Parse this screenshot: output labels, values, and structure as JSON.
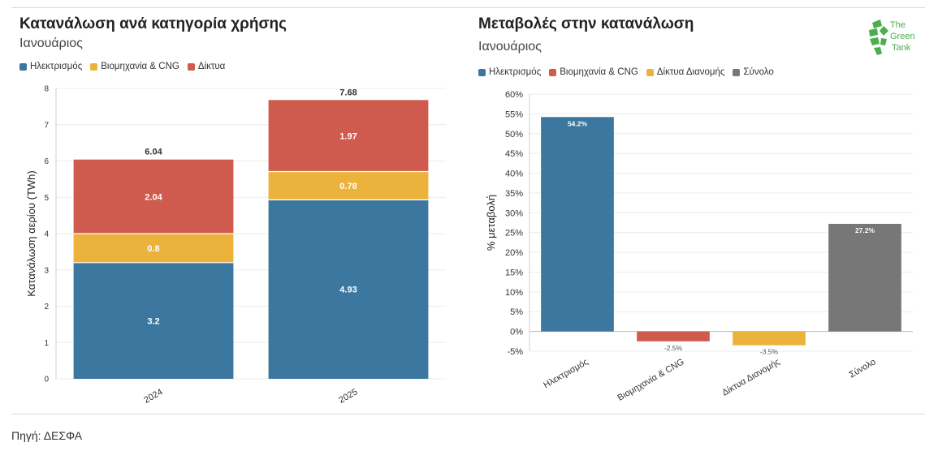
{
  "source": "Πηγή: ΔΕΣΦΑ",
  "logo": {
    "text_line1": "The",
    "text_line2": "Green",
    "text_line3": "Tank",
    "color": "#4cae4c"
  },
  "left": {
    "title": "Κατανάλωση ανά κατηγορία χρήσης",
    "subtitle": "Ιανουάριος",
    "legend": [
      {
        "label": "Ηλεκτρισμός",
        "color": "#3b779e"
      },
      {
        "label": "Βιομηχανία & CNG",
        "color": "#ebb33b"
      },
      {
        "label": "Δίκτυα",
        "color": "#cf5b4e"
      }
    ]
  },
  "right": {
    "title": "Μεταβολές στην κατανάλωση",
    "subtitle": "Ιανουάριος",
    "legend": [
      {
        "label": "Ηλεκτρισμός",
        "color": "#3b779e"
      },
      {
        "label": "Βιομηχανία & CNG",
        "color": "#cf5b4e"
      },
      {
        "label": "Δίκτυα Διανομής",
        "color": "#ebb33b"
      },
      {
        "label": "Σύνολο",
        "color": "#777777"
      }
    ]
  },
  "chart_data": [
    {
      "type": "bar",
      "stacked": true,
      "title": "Κατανάλωση ανά κατηγορία χρήσης",
      "subtitle": "Ιανουάριος",
      "categories": [
        "2024",
        "2025"
      ],
      "series": [
        {
          "name": "Ηλεκτρισμός",
          "values": [
            3.2,
            4.93
          ],
          "labels": [
            "3.2",
            "4.93"
          ],
          "color": "#3b779e"
        },
        {
          "name": "Βιομηχανία & CNG",
          "values": [
            0.8,
            0.78
          ],
          "labels": [
            "0.8",
            "0.78"
          ],
          "color": "#ebb33b"
        },
        {
          "name": "Δίκτυα",
          "values": [
            2.04,
            1.97
          ],
          "labels": [
            "2.04",
            "1.97"
          ],
          "color": "#cf5b4e"
        }
      ],
      "totals": [
        "6.04",
        "7.68"
      ],
      "xlabel": "",
      "ylabel": "Κατανάλωση αερίου (TWh)",
      "ylim": [
        0,
        8
      ],
      "yticks": [
        "0",
        "1",
        "2",
        "3",
        "4",
        "5",
        "6",
        "7",
        "8"
      ],
      "grid": true,
      "legend": "top-left"
    },
    {
      "type": "bar",
      "title": "Μεταβολές στην κατανάλωση",
      "subtitle": "Ιανουάριος",
      "categories": [
        "Ηλεκτρισμός",
        "Βιομηχανία & CNG",
        "Δίκτυα Διανομής",
        "Σύνολο"
      ],
      "values": [
        54.2,
        -2.5,
        -3.5,
        27.2
      ],
      "labels": [
        "54.2%",
        "-2.5%",
        "-3.5%",
        "27.2%"
      ],
      "colors": [
        "#3b779e",
        "#cf5b4e",
        "#ebb33b",
        "#777777"
      ],
      "xlabel": "",
      "ylabel": "% μεταβολή",
      "ylim": [
        -5,
        60
      ],
      "yticks": [
        "-5%",
        "0%",
        "5%",
        "10%",
        "15%",
        "20%",
        "25%",
        "30%",
        "35%",
        "40%",
        "45%",
        "50%",
        "55%",
        "60%"
      ],
      "grid": true,
      "legend": "top-left"
    }
  ]
}
